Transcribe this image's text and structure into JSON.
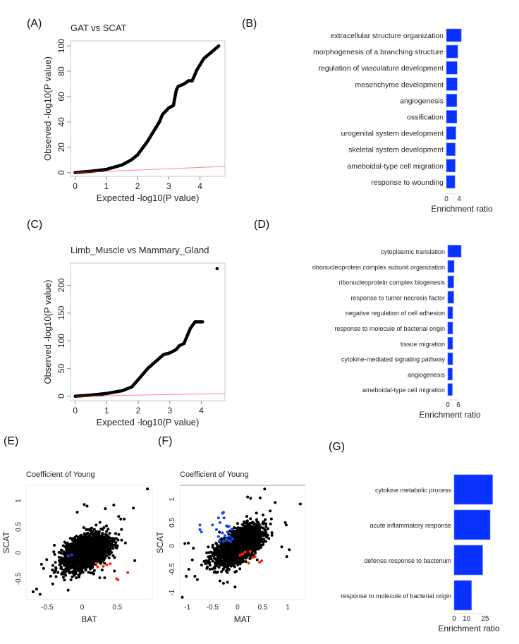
{
  "panel_labels": {
    "A": "(A)",
    "B": "(B)",
    "C": "(C)",
    "D": "(D)",
    "E": "(E)",
    "F": "(F)",
    "G": "(G)"
  },
  "colors": {
    "bar": "#0a32ff",
    "point": "#000000",
    "refline": "#ff8a8a",
    "up": "#1448ff",
    "down": "#ff2a00",
    "frame": "#c8c8c8"
  },
  "chart_data": [
    {
      "id": "A",
      "type": "scatter",
      "title": "GAT vs SCAT",
      "xlabel": "Expected -log10(P value)",
      "ylabel": "Observed -log10(P value)",
      "xticks": [
        0,
        1,
        2,
        3,
        4
      ],
      "yticks": [
        0,
        20,
        40,
        60,
        80,
        100
      ],
      "xlim": [
        -0.15,
        4.8
      ],
      "ylim": [
        -3,
        104
      ],
      "reference_line": "y = x",
      "points": [
        [
          0,
          0
        ],
        [
          0.5,
          1
        ],
        [
          1,
          2.5
        ],
        [
          1.5,
          6
        ],
        [
          1.8,
          10
        ],
        [
          2,
          14
        ],
        [
          2.3,
          24
        ],
        [
          2.5,
          32
        ],
        [
          2.7,
          40
        ],
        [
          2.8,
          46
        ],
        [
          3,
          51
        ],
        [
          3.15,
          53
        ],
        [
          3.17,
          56
        ],
        [
          3.24,
          65
        ],
        [
          3.3,
          68
        ],
        [
          3.45,
          69.5
        ],
        [
          3.55,
          71
        ],
        [
          3.63,
          72.5
        ],
        [
          3.75,
          72.5
        ],
        [
          3.9,
          81
        ],
        [
          4.12,
          90
        ],
        [
          4.6,
          100
        ]
      ]
    },
    {
      "id": "B",
      "type": "bar",
      "orientation": "horizontal",
      "xlabel": "Enrichment ratio",
      "xticks": [
        0,
        4
      ],
      "categories": [
        "extracellular structure organization",
        "morphogenesis of a branching structure",
        "regulation of vasculature development",
        "mesenchyme development",
        "angiogenesis",
        "ossification",
        "urogenital system development",
        "skeletal system development",
        "ameboidal-type cell migration",
        "response to wounding"
      ],
      "values": [
        4.7,
        3.6,
        3.4,
        3.4,
        3.3,
        3.3,
        3.0,
        2.8,
        2.8,
        2.7
      ]
    },
    {
      "id": "C",
      "type": "scatter",
      "title": "Limb_Muscle vs Mammary_Gland",
      "xlabel": "Expected -log10(P value)",
      "ylabel": "Observed -log10(P value)",
      "xticks": [
        0,
        1,
        2,
        3,
        4
      ],
      "yticks": [
        0,
        50,
        100,
        150,
        200
      ],
      "xlim": [
        -0.15,
        4.75
      ],
      "ylim": [
        -8,
        240
      ],
      "reference_line": "y = x",
      "points": [
        [
          0,
          0
        ],
        [
          0.5,
          2
        ],
        [
          1,
          5
        ],
        [
          1.5,
          10
        ],
        [
          1.8,
          17
        ],
        [
          2,
          30
        ],
        [
          2.3,
          50
        ],
        [
          2.5,
          60
        ],
        [
          2.8,
          75
        ],
        [
          3,
          78
        ],
        [
          3.2,
          84
        ],
        [
          3.3,
          91
        ],
        [
          3.45,
          95
        ],
        [
          3.56,
          110
        ],
        [
          3.66,
          123
        ],
        [
          3.8,
          134
        ],
        [
          4.04,
          134
        ],
        [
          4.5,
          230
        ]
      ]
    },
    {
      "id": "D",
      "type": "bar",
      "orientation": "horizontal",
      "xlabel": "Enrichment ratio",
      "xticks": [
        0,
        6
      ],
      "categories": [
        "cytoplasmic translation",
        "ribonucleoprotein complex subunit organization",
        "ribonucleoprotein complex biogenesis",
        "response to tumor necrosis factor",
        "negative regulation of cell adhesion",
        "response to molecule of bacterial origin",
        "tissue migration",
        "cytokine-mediated signaling pathway",
        "angiogenesis",
        "ameboidal-type cell migration"
      ],
      "values": [
        7.6,
        3.6,
        3.4,
        3.4,
        2.8,
        2.8,
        2.8,
        2.8,
        2.6,
        2.6
      ]
    },
    {
      "id": "E",
      "type": "scatter",
      "title": "Coefficient of Young",
      "xlabel": "BAT",
      "ylabel": "SCAT",
      "xticks": [
        -0.5,
        0.0,
        0.5
      ],
      "yticks": [
        -0.5,
        0.0,
        0.5,
        1.0
      ],
      "xlim": [
        -0.8,
        1.0
      ],
      "ylim": [
        -0.9,
        1.3
      ],
      "outliers": [
        [
          0.93,
          1.23
        ],
        [
          0.73,
          0.86
        ],
        [
          0.45,
          0.92
        ],
        [
          0.33,
          0.85
        ],
        [
          0.03,
          0.93
        ],
        [
          0.07,
          0.9
        ],
        [
          -0.07,
          0.78
        ],
        [
          0.52,
          0.7
        ],
        [
          0.55,
          0.65
        ],
        [
          0.6,
          0.65
        ],
        [
          0.56,
          0.45
        ],
        [
          0.75,
          -0.15
        ],
        [
          0.46,
          -0.35
        ],
        [
          0.25,
          -0.48
        ],
        [
          0.32,
          -0.48
        ],
        [
          -0.7,
          -0.75
        ],
        [
          -0.65,
          -0.7
        ],
        [
          -0.6,
          -0.8
        ],
        [
          -0.58,
          -0.22
        ],
        [
          -0.55,
          -0.3
        ],
        [
          -0.45,
          -0.45
        ],
        [
          -0.42,
          -0.6
        ],
        [
          -0.2,
          -0.72
        ],
        [
          -0.16,
          -0.52
        ],
        [
          -0.4,
          -0.38
        ]
      ],
      "up_points": [
        [
          -0.2,
          -0.06
        ],
        [
          -0.15,
          -0.04
        ]
      ],
      "down_points": [
        [
          0.2,
          -0.2
        ],
        [
          0.22,
          -0.27
        ],
        [
          0.3,
          -0.26
        ],
        [
          0.35,
          -0.23
        ],
        [
          0.4,
          -0.21
        ],
        [
          0.49,
          -0.5
        ],
        [
          0.51,
          -0.52
        ],
        [
          0.65,
          -0.38
        ]
      ]
    },
    {
      "id": "F",
      "type": "scatter",
      "title": "Coefficient of Young",
      "xlabel": "MAT",
      "ylabel": "SCAT",
      "xticks": [
        -1.0,
        -0.5,
        0.0,
        0.5,
        1.0
      ],
      "yticks": [
        -1.0,
        -0.5,
        0.0,
        0.5,
        1.0
      ],
      "xlim": [
        -1.15,
        1.35
      ],
      "ylim": [
        -1.15,
        1.3
      ],
      "outliers": [
        [
          1.25,
          0.9
        ],
        [
          0.54,
          1.22
        ],
        [
          0.45,
          1.03
        ],
        [
          0.2,
          1.05
        ],
        [
          0.26,
          1.02
        ],
        [
          0.75,
          0.93
        ],
        [
          0.95,
          0.5
        ],
        [
          0.97,
          0.45
        ],
        [
          1.03,
          -0.08
        ],
        [
          0.98,
          -0.23
        ],
        [
          0.88,
          -0.02
        ],
        [
          0.65,
          0.75
        ],
        [
          -1.1,
          -1.1
        ],
        [
          -1.02,
          -0.65
        ],
        [
          -0.97,
          -0.5
        ],
        [
          -0.9,
          -0.3
        ],
        [
          -0.85,
          -0.65
        ],
        [
          -0.8,
          -0.72
        ],
        [
          -0.55,
          -0.5
        ],
        [
          -0.45,
          -0.55
        ],
        [
          -0.35,
          -0.75
        ],
        [
          -0.28,
          -0.8
        ],
        [
          -0.2,
          -0.78
        ],
        [
          -0.05,
          -0.88
        ],
        [
          -0.05,
          -0.56
        ],
        [
          -1.05,
          0.05
        ],
        [
          -0.98,
          0.06
        ],
        [
          -0.88,
          -0.05
        ]
      ],
      "up_points": [
        [
          -0.75,
          0.45
        ],
        [
          -0.75,
          0.35
        ],
        [
          -0.72,
          0.3
        ],
        [
          -0.5,
          0.45
        ],
        [
          -0.42,
          0.35
        ],
        [
          -0.38,
          0.6
        ],
        [
          -0.35,
          0.5
        ],
        [
          -0.3,
          0.7
        ],
        [
          -0.28,
          0.72
        ],
        [
          -0.27,
          0.6
        ],
        [
          -0.22,
          0.43
        ],
        [
          -0.2,
          0.3
        ],
        [
          -0.17,
          0.42
        ],
        [
          -0.12,
          0.35
        ],
        [
          -0.38,
          0.2
        ],
        [
          -0.35,
          0.1
        ],
        [
          -0.3,
          0.28
        ],
        [
          -0.25,
          0.22
        ],
        [
          -0.22,
          0.15
        ],
        [
          -0.18,
          0.12
        ],
        [
          -0.15,
          0.2
        ],
        [
          -0.1,
          0.15
        ],
        [
          -0.14,
          0.1
        ],
        [
          -0.28,
          0.1
        ]
      ],
      "down_points": [
        [
          0.05,
          -0.2
        ],
        [
          0.1,
          -0.17
        ],
        [
          0.15,
          -0.13
        ],
        [
          0.25,
          -0.12
        ],
        [
          0.3,
          -0.25
        ],
        [
          0.35,
          -0.23
        ],
        [
          0.22,
          -0.37
        ],
        [
          0.44,
          -0.35
        ],
        [
          0.48,
          -0.32
        ]
      ]
    },
    {
      "id": "G",
      "type": "bar",
      "orientation": "horizontal",
      "xlabel": "Enrichment ratio",
      "xticks": [
        0,
        10,
        25
      ],
      "categories": [
        "cytokine metabolic process",
        "acute inflammatory response",
        "defense response to bacterium",
        "response to molecule of bacterial origin"
      ],
      "values": [
        31,
        29,
        23,
        14
      ]
    }
  ]
}
